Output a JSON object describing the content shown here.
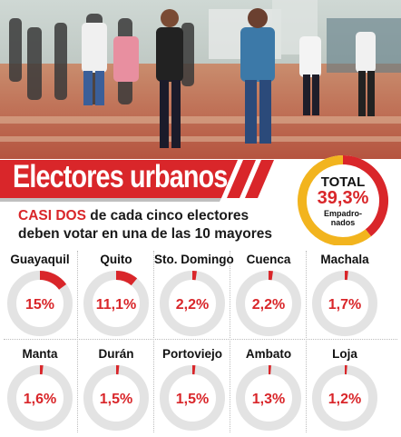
{
  "title": "Electores urbanos",
  "subtitle": {
    "highlight": "CASI DOS",
    "rest": " de cada cinco electores deben votar en una de las 10 mayores ciudades:"
  },
  "total": {
    "label": "TOTAL",
    "value_text": "39,3%",
    "sub_line1": "Empadro-",
    "sub_line2": "nados"
  },
  "colors": {
    "accent": "#d9262a",
    "ring_bg": "#e3e3e3",
    "total_rest": "#f2b41e"
  },
  "chart_data": [
    {
      "type": "pie",
      "title": "TOTAL",
      "values": [
        39.3,
        60.7
      ]
    },
    {
      "type": "pie",
      "categories": [
        "Guayaquil",
        "Quito",
        "Sto. Domingo",
        "Cuenca",
        "Machala",
        "Manta",
        "Durán",
        "Portoviejo",
        "Ambato",
        "Loja"
      ],
      "values": [
        15,
        11.1,
        2.2,
        2.2,
        1.7,
        1.6,
        1.5,
        1.5,
        1.3,
        1.2
      ],
      "labels": [
        "15%",
        "11,1%",
        "2,2%",
        "2,2%",
        "1,7%",
        "1,6%",
        "1,5%",
        "1,5%",
        "1,3%",
        "1,2%"
      ]
    }
  ]
}
